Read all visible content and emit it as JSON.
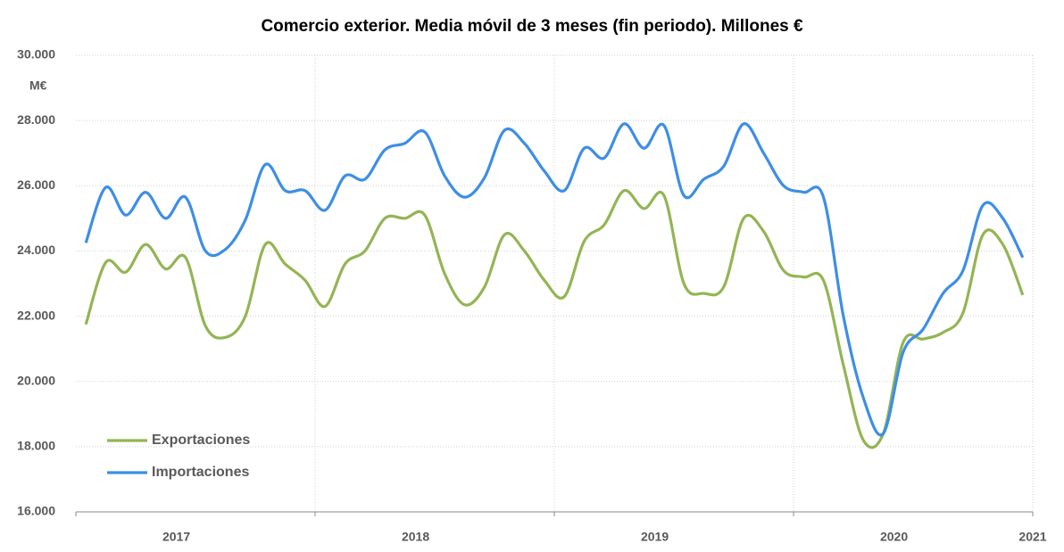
{
  "chart_data": {
    "type": "line",
    "title": "Comercio exterior. Media móvil de 3 meses (fin periodo). Millones €",
    "y_label": "M€",
    "categories": [
      null,
      null,
      null,
      null,
      null,
      null,
      null,
      null,
      null,
      null,
      null,
      null,
      null,
      null,
      null,
      null,
      null,
      null,
      null,
      null,
      null,
      null,
      null,
      null,
      null,
      null,
      null,
      null,
      null,
      null,
      null,
      null,
      null,
      null,
      null,
      null,
      null,
      null,
      null,
      null,
      null,
      null,
      null,
      null,
      null,
      null,
      null,
      null
    ],
    "year_labels": [
      "2017",
      "2018",
      "2019",
      "2020",
      "2021"
    ],
    "series": [
      {
        "name": "Exportaciones",
        "color": "#93b554",
        "values": [
          21750,
          23650,
          23350,
          24200,
          23450,
          23800,
          21700,
          21350,
          22000,
          24200,
          23600,
          23100,
          22300,
          23600,
          24000,
          25000,
          25000,
          25100,
          23300,
          22350,
          22900,
          24500,
          24000,
          23100,
          22600,
          24300,
          24800,
          25850,
          25300,
          25700,
          23000,
          22700,
          22900,
          25000,
          24600,
          23400,
          23200,
          23100,
          20500,
          18200,
          18400,
          21200,
          21300,
          21500,
          22100,
          24500,
          24200,
          22650
        ]
      },
      {
        "name": "Importaciones",
        "color": "#3d8ee6",
        "values": [
          24250,
          25950,
          25100,
          25800,
          25000,
          25650,
          24000,
          24050,
          24950,
          26650,
          25850,
          25850,
          25250,
          26300,
          26200,
          27100,
          27300,
          27650,
          26300,
          25650,
          26250,
          27700,
          27300,
          26450,
          25850,
          27150,
          26850,
          27900,
          27150,
          27850,
          25700,
          26200,
          26600,
          27900,
          27000,
          26000,
          25800,
          25650,
          22000,
          19500,
          18400,
          20900,
          21600,
          22700,
          23400,
          25400,
          25000,
          23800
        ]
      }
    ],
    "ylim": [
      16000,
      30000
    ],
    "yticks": [
      {
        "value": 16000,
        "label": "16.000"
      },
      {
        "value": 18000,
        "label": "18.000"
      },
      {
        "value": 20000,
        "label": "20.000"
      },
      {
        "value": 22000,
        "label": "22.000"
      },
      {
        "value": 24000,
        "label": "24.000"
      },
      {
        "value": 26000,
        "label": "26.000"
      },
      {
        "value": 28000,
        "label": "28.000"
      },
      {
        "value": 30000,
        "label": "30.000"
      }
    ],
    "grid": true,
    "legend": "lower left"
  }
}
